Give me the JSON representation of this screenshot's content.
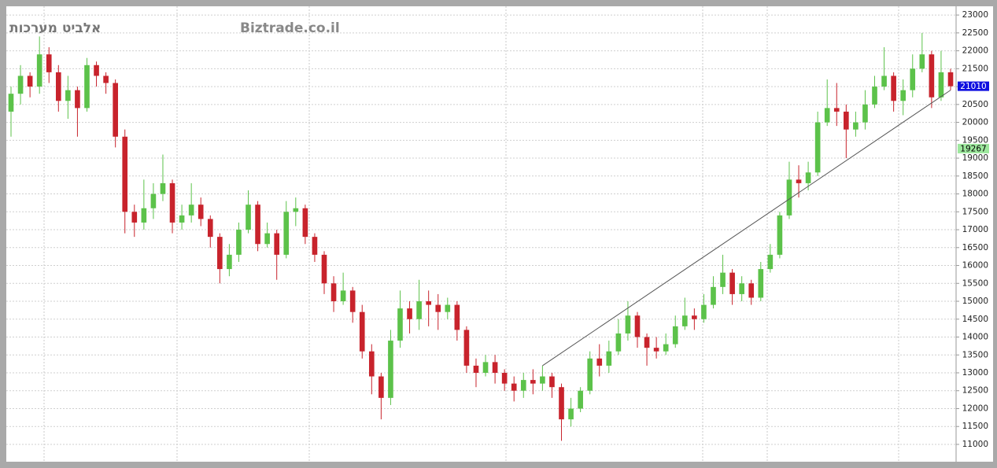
{
  "chart_data": {
    "type": "candlestick",
    "title": "אלביט מערכות",
    "watermark": "Biztrade.co.il",
    "open": [
      20300,
      20800,
      21300,
      21000,
      21900,
      21400,
      20600,
      20900,
      20400,
      21600,
      21300,
      21100,
      19600,
      17500,
      17200,
      17600,
      18000,
      18300,
      17200,
      17400,
      17700,
      17300,
      16800,
      15900,
      16300,
      17000,
      17700,
      16600,
      16900,
      16300,
      17500,
      17600,
      16800,
      16300,
      15500,
      15000,
      15300,
      14700,
      13600,
      12900,
      12300,
      13900,
      14800,
      14500,
      15000,
      14900,
      14700,
      14900,
      14200,
      13200,
      13000,
      13300,
      13000,
      12700,
      12500,
      12800,
      12700,
      12900,
      12600,
      11700,
      12000,
      12500,
      13400,
      13200,
      13600,
      14100,
      14600,
      14000,
      13700,
      13600,
      13800,
      14300,
      14600,
      14500,
      14900,
      15400,
      15800,
      15200,
      15500,
      15100,
      15900,
      16300,
      17400,
      18400,
      18300,
      18600,
      20000,
      20400,
      20300,
      19800,
      20000,
      20500,
      21000,
      21300,
      20600,
      20900,
      21500,
      21900,
      20700,
      21400
    ],
    "high": [
      21000,
      21600,
      21400,
      22400,
      22100,
      21600,
      21300,
      21000,
      21800,
      21700,
      21400,
      21200,
      19800,
      17700,
      18400,
      18300,
      19100,
      18400,
      17700,
      18300,
      17900,
      17400,
      16900,
      16600,
      17200,
      18100,
      17800,
      17200,
      17000,
      17800,
      17900,
      17700,
      16900,
      16400,
      15700,
      15800,
      15400,
      14900,
      13800,
      13000,
      14200,
      15300,
      15000,
      15600,
      15300,
      15200,
      15100,
      15000,
      14300,
      13400,
      13500,
      13500,
      13100,
      12900,
      13000,
      13100,
      13200,
      13000,
      12700,
      12300,
      12600,
      13600,
      13800,
      13900,
      14500,
      15000,
      14700,
      14100,
      14000,
      14100,
      14600,
      15100,
      14800,
      15200,
      15700,
      16300,
      15900,
      15700,
      15600,
      16100,
      16600,
      17500,
      18900,
      18800,
      18900,
      20300,
      21200,
      21100,
      20500,
      20300,
      20900,
      21300,
      22100,
      21400,
      21200,
      21900,
      22500,
      22000,
      22000,
      21500
    ],
    "low": [
      19600,
      20500,
      20700,
      20800,
      21100,
      20300,
      20100,
      19600,
      20300,
      21000,
      20800,
      19300,
      16900,
      16800,
      17000,
      17300,
      17800,
      16900,
      17000,
      17200,
      17100,
      16500,
      15500,
      15700,
      16100,
      16900,
      16400,
      16500,
      15600,
      16200,
      17100,
      16600,
      16100,
      15200,
      14700,
      14900,
      14400,
      13400,
      12400,
      11700,
      12100,
      13700,
      14100,
      14200,
      14300,
      14200,
      14500,
      13900,
      13000,
      12600,
      12900,
      12700,
      12500,
      12200,
      12300,
      12400,
      12500,
      12300,
      11100,
      11500,
      11900,
      12400,
      12900,
      13000,
      13500,
      13900,
      13700,
      13200,
      13400,
      13500,
      13700,
      14200,
      14200,
      14400,
      14800,
      15200,
      14900,
      15000,
      14900,
      15000,
      15800,
      16200,
      17300,
      17900,
      18100,
      18500,
      19900,
      19900,
      19000,
      19600,
      19800,
      20400,
      20900,
      20300,
      20200,
      20700,
      21400,
      20400,
      20600,
      20900
    ],
    "close": [
      20800,
      21300,
      21000,
      21900,
      21400,
      20600,
      20900,
      20400,
      21600,
      21300,
      21100,
      19600,
      17500,
      17200,
      17600,
      18000,
      18300,
      17200,
      17400,
      17700,
      17300,
      16800,
      15900,
      16300,
      17000,
      17700,
      16600,
      16900,
      16300,
      17500,
      17600,
      16800,
      16300,
      15500,
      15000,
      15300,
      14700,
      13600,
      12900,
      12300,
      13900,
      14800,
      14500,
      15000,
      14900,
      14700,
      14900,
      14200,
      13200,
      13000,
      13300,
      13000,
      12700,
      12500,
      12800,
      12700,
      12900,
      12600,
      11700,
      12000,
      12500,
      13400,
      13200,
      13600,
      14100,
      14600,
      14000,
      13700,
      13600,
      13800,
      14300,
      14600,
      14500,
      14900,
      15400,
      15800,
      15200,
      15500,
      15100,
      15900,
      16300,
      17400,
      18400,
      18300,
      18600,
      20000,
      20400,
      20300,
      19800,
      20000,
      20500,
      21000,
      21300,
      20600,
      20900,
      21500,
      21900,
      20700,
      21400,
      21010
    ],
    "up_color": "#5cc24a",
    "down_color": "#c8232c",
    "trendline": {
      "start": [
        56,
        13200
      ],
      "end": [
        99,
        20900
      ],
      "color": "#555555"
    },
    "price_labels": [
      {
        "value": 21010,
        "color": "#1010e0"
      },
      {
        "value": 19267,
        "color": "#9de89d"
      }
    ],
    "ylim": [
      10560,
      23200
    ],
    "yticks": [
      11000,
      11500,
      12000,
      12500,
      13000,
      13500,
      14000,
      14500,
      15000,
      15500,
      16000,
      16500,
      17000,
      17500,
      18000,
      18500,
      19000,
      19500,
      20000,
      20500,
      21000,
      21500,
      22000,
      22500,
      23000
    ],
    "grid": true
  }
}
